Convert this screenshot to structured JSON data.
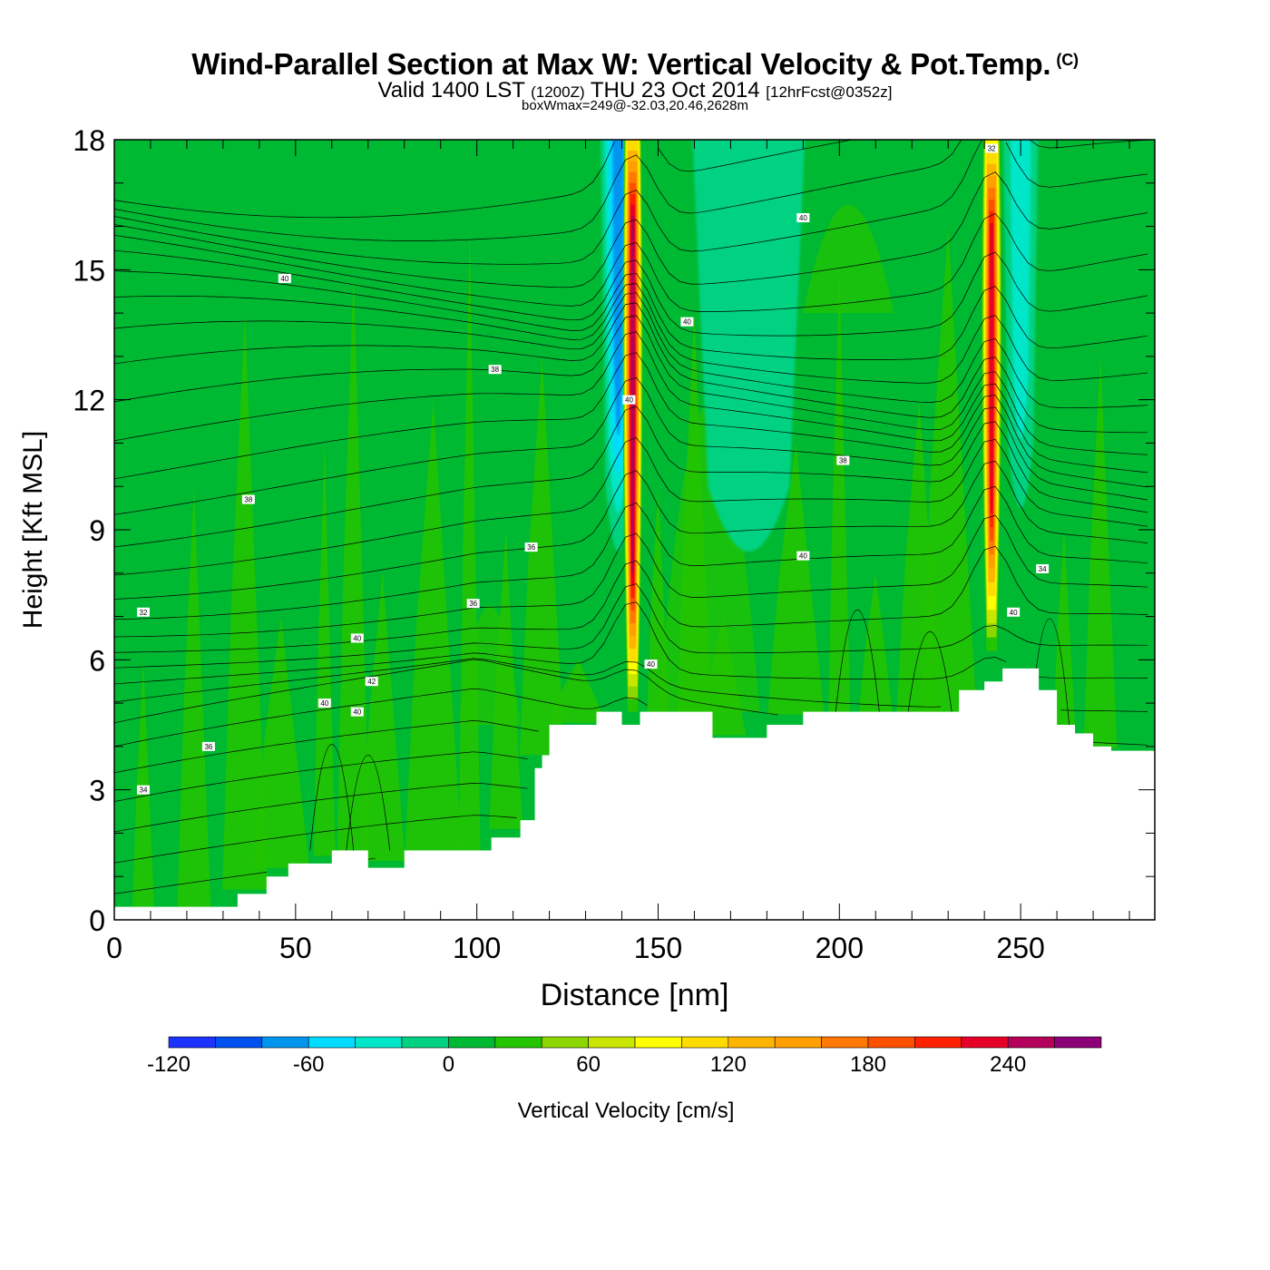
{
  "title": {
    "main": "Wind-Parallel Section at Max W: Vertical Velocity & Pot.Temp.",
    "copyright": "(C)",
    "valid_prefix": "Valid 1400 LST",
    "valid_utc": "(1200Z)",
    "valid_date": "THU 23 Oct 2014",
    "forecast": "[12hrFcst@0352z]",
    "boxwmax": "boxWmax=249@-32.03,20.46,2628m"
  },
  "chart_data": {
    "type": "heatmap",
    "xlabel": "Distance [nm]",
    "ylabel": "Height [Kft MSL]",
    "xlim": [
      0,
      287
    ],
    "ylim": [
      0,
      18
    ],
    "x_ticks": [
      0,
      50,
      100,
      150,
      200,
      250
    ],
    "y_ticks": [
      0,
      3,
      6,
      9,
      12,
      15,
      18
    ],
    "colorbar": {
      "label": "Vertical Velocity [cm/s]",
      "range": [
        -120,
        280
      ],
      "step": 20,
      "tick_labels": [
        "-120",
        "-60",
        "0",
        "60",
        "120",
        "180",
        "240"
      ],
      "colors": [
        "#1e32ff",
        "#0050f0",
        "#0096f0",
        "#00dcff",
        "#00e6c8",
        "#00d282",
        "#00b932",
        "#23c400",
        "#8cd700",
        "#c8e600",
        "#ffff00",
        "#ffdc00",
        "#ffb400",
        "#ffa000",
        "#ff7800",
        "#ff5000",
        "#ff2000",
        "#e60028",
        "#b4005a",
        "#8c0078"
      ]
    },
    "background_value_cm_s": 10,
    "updraft_cores": [
      {
        "x_nm": 143,
        "bottom_kft": 4.8,
        "top_kft": 18,
        "max_cm_s": 249
      },
      {
        "x_nm": 242,
        "bottom_kft": 6.2,
        "top_kft": 17.8,
        "max_cm_s": 230
      }
    ],
    "downdraft_zones": [
      {
        "x_nm": 139,
        "bottom_kft": 8,
        "top_kft": 18,
        "min_cm_s": -80
      },
      {
        "x_nm": 175,
        "bottom_kft": 8,
        "top_kft": 18,
        "min_cm_s": -20
      },
      {
        "x_nm": 250,
        "bottom_kft": 9,
        "top_kft": 18,
        "min_cm_s": -40
      }
    ],
    "terrain": {
      "x_nm": [
        0,
        30,
        34,
        42,
        48,
        55,
        60,
        70,
        80,
        90,
        100,
        104,
        112,
        116,
        118,
        120,
        127,
        133,
        140,
        145,
        160,
        165,
        180,
        190,
        200,
        220,
        230,
        233,
        240,
        245,
        250,
        255,
        260,
        265,
        270,
        275,
        287
      ],
      "height_kft": [
        0.3,
        0.3,
        0.6,
        1.0,
        1.3,
        1.3,
        1.6,
        1.2,
        1.6,
        1.6,
        1.6,
        1.9,
        2.3,
        3.5,
        3.8,
        4.5,
        4.5,
        4.8,
        4.5,
        4.8,
        4.8,
        4.2,
        4.5,
        4.8,
        4.8,
        4.8,
        4.8,
        5.3,
        5.5,
        5.8,
        5.8,
        5.3,
        4.5,
        4.3,
        4.0,
        3.9,
        3.9
      ]
    },
    "theta_contour_labels": [
      "32",
      "34",
      "36",
      "38",
      "40",
      "40",
      "40",
      "40",
      "42",
      "36",
      "38",
      "36",
      "40",
      "40",
      "40",
      "40",
      "40",
      "38",
      "40"
    ]
  }
}
